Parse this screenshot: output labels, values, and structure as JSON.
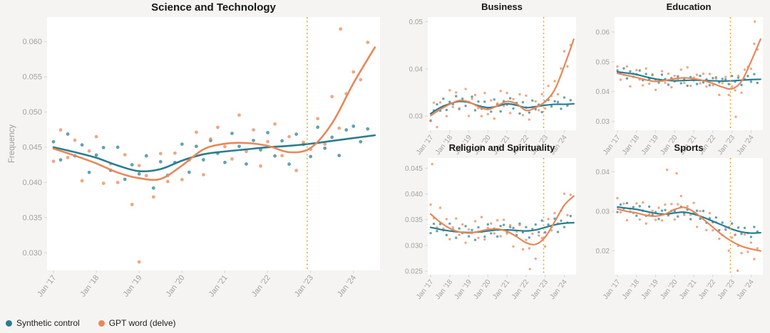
{
  "ylabel": "Frequency",
  "colors": {
    "synthetic": "#2a7d8c",
    "gpt": "#e8875a",
    "event_line": "#eda63c",
    "tick_text": "#a3a3a3",
    "panel_bg": "#ffffff",
    "figure_bg": "#f5f4f2"
  },
  "legend": {
    "items": [
      {
        "key": "synthetic",
        "label": "Synthetic control"
      },
      {
        "key": "gpt",
        "label": "GPT word (delve)"
      }
    ]
  },
  "x_domain": [
    2016.85,
    2024.62
  ],
  "event_x": 2022.92,
  "x_ticks": [
    {
      "year": 2017,
      "label": "Jan '17"
    },
    {
      "year": 2018,
      "label": "Jan '18"
    },
    {
      "year": 2019,
      "label": "Jan '19"
    },
    {
      "year": 2020,
      "label": "Jan '20"
    },
    {
      "year": 2021,
      "label": "Jan '21"
    },
    {
      "year": 2022,
      "label": "Jan '22"
    },
    {
      "year": 2023,
      "label": "Jan '23"
    },
    {
      "year": 2024,
      "label": "Jan '24"
    }
  ],
  "trend_x": [
    2017,
    2017.5,
    2018,
    2018.5,
    2019,
    2019.5,
    2020,
    2020.5,
    2021,
    2021.5,
    2022,
    2022.5,
    2023,
    2023.5,
    2024,
    2024.5
  ],
  "scatter_x": {
    "start": 2017.0,
    "step": 0.16667,
    "count": 45
  },
  "noise": {
    "n1": [
      0.3,
      -0.6,
      0.9,
      -0.2,
      0.5,
      -0.9,
      0.15,
      0.7,
      -0.4,
      1.0,
      -0.65,
      0.25,
      -0.15,
      0.8,
      -1.0,
      0.4,
      -0.5,
      0.05,
      0.9,
      -0.75,
      0.55,
      -0.3,
      0.7,
      -0.05,
      -0.6,
      0.95,
      0.2,
      -0.8,
      0.45,
      -0.1,
      0.8,
      -0.5,
      0.3,
      -1.0,
      0.6,
      0.0,
      -0.7,
      0.85,
      -0.35,
      0.2,
      -0.85,
      0.5,
      0.65,
      -0.25,
      0.4
    ],
    "n2": [
      -0.45,
      0.75,
      -0.15,
      0.55,
      -0.8,
      0.35,
      0.95,
      -0.6,
      0.2,
      -0.35,
      0.7,
      -1.0,
      0.45,
      0.1,
      -0.65,
      0.9,
      -0.25,
      0.6,
      -0.5,
      0.0,
      0.8,
      -0.9,
      0.3,
      0.65,
      -0.1,
      -0.55,
      1.0,
      -0.3,
      0.5,
      -0.75,
      0.15,
      0.85,
      -0.2,
      0.55,
      -0.7,
      0.25,
      -0.05,
      0.75,
      -0.45,
      0.95,
      -0.65,
      0.1,
      0.4,
      -0.3,
      0.6
    ]
  },
  "chart_data": [
    {
      "type": "scatter",
      "key": "science",
      "title": "Science and Technology",
      "ylim": [
        0.0275,
        0.0635
      ],
      "yticks": [
        {
          "value": 0.03,
          "label": "0.030"
        },
        {
          "value": 0.035,
          "label": "0.035"
        },
        {
          "value": 0.04,
          "label": "0.040"
        },
        {
          "value": 0.045,
          "label": "0.045"
        },
        {
          "value": 0.05,
          "label": "0.050"
        },
        {
          "value": 0.055,
          "label": "0.055"
        },
        {
          "value": 0.06,
          "label": "0.060"
        }
      ],
      "series": {
        "synthetic": {
          "trend": [
            0.045,
            0.0443,
            0.0435,
            0.0424,
            0.0416,
            0.0419,
            0.0431,
            0.044,
            0.0444,
            0.0447,
            0.045,
            0.0452,
            0.0455,
            0.0459,
            0.0463,
            0.0467
          ],
          "amp": 0.0026,
          "shift": 0,
          "outliers": []
        },
        "gpt": {
          "trend": [
            0.0448,
            0.0438,
            0.0427,
            0.0414,
            0.0406,
            0.0405,
            0.0424,
            0.0447,
            0.0455,
            0.0456,
            0.0452,
            0.0443,
            0.0449,
            0.0484,
            0.0541,
            0.0592
          ],
          "amp": 0.004,
          "shift": 0,
          "outliers": [
            [
              2019.0,
              0.0287
            ],
            [
              2023.7,
              0.0618
            ]
          ]
        }
      }
    },
    {
      "type": "scatter",
      "key": "business",
      "title": "Business",
      "ylim": [
        0.027,
        0.051
      ],
      "yticks": [
        {
          "value": 0.03,
          "label": "0.03"
        },
        {
          "value": 0.04,
          "label": "0.04"
        },
        {
          "value": 0.05,
          "label": "0.05"
        }
      ],
      "series": {
        "synthetic": {
          "trend": [
            0.0305,
            0.0318,
            0.0326,
            0.0331,
            0.0329,
            0.0322,
            0.0318,
            0.0321,
            0.0326,
            0.0323,
            0.0318,
            0.032,
            0.0323,
            0.0325,
            0.0325,
            0.0326
          ],
          "amp": 0.0016,
          "shift": 5,
          "outliers": []
        },
        "gpt": {
          "trend": [
            0.0301,
            0.0314,
            0.0325,
            0.0333,
            0.033,
            0.032,
            0.0314,
            0.0322,
            0.0331,
            0.0326,
            0.0312,
            0.0318,
            0.0331,
            0.0356,
            0.0406,
            0.0463
          ],
          "amp": 0.0033,
          "shift": 9,
          "outliers": []
        }
      }
    },
    {
      "type": "scatter",
      "key": "education",
      "title": "Education",
      "ylim": [
        0.027,
        0.065
      ],
      "yticks": [
        {
          "value": 0.03,
          "label": "0.03"
        },
        {
          "value": 0.04,
          "label": "0.04"
        },
        {
          "value": 0.05,
          "label": "0.05"
        },
        {
          "value": 0.06,
          "label": "0.06"
        }
      ],
      "series": {
        "synthetic": {
          "trend": [
            0.0466,
            0.0462,
            0.0457,
            0.0449,
            0.0442,
            0.0438,
            0.0436,
            0.0437,
            0.0438,
            0.0437,
            0.0436,
            0.0435,
            0.0436,
            0.0438,
            0.044,
            0.0441
          ],
          "amp": 0.0018,
          "shift": 11,
          "outliers": []
        },
        "gpt": {
          "trend": [
            0.0461,
            0.0454,
            0.0447,
            0.0439,
            0.0434,
            0.0437,
            0.0443,
            0.0446,
            0.0443,
            0.0437,
            0.0427,
            0.0415,
            0.0409,
            0.0434,
            0.0501,
            0.0576
          ],
          "amp": 0.0038,
          "shift": 17,
          "outliers": [
            [
              2023.2,
              0.0315
            ],
            [
              2024.2,
              0.0635
            ]
          ]
        }
      }
    },
    {
      "type": "scatter",
      "key": "religion",
      "title": "Religion and Spirituality",
      "ylim": [
        0.0243,
        0.047
      ],
      "yticks": [
        {
          "value": 0.025,
          "label": "0.025"
        },
        {
          "value": 0.03,
          "label": "0.030"
        },
        {
          "value": 0.035,
          "label": "0.035"
        },
        {
          "value": 0.04,
          "label": "0.040"
        },
        {
          "value": 0.045,
          "label": "0.045"
        }
      ],
      "series": {
        "synthetic": {
          "trend": [
            0.0335,
            0.0331,
            0.0328,
            0.0326,
            0.0325,
            0.0326,
            0.0328,
            0.033,
            0.033,
            0.0329,
            0.0328,
            0.033,
            0.0335,
            0.034,
            0.0343,
            0.0344
          ],
          "amp": 0.0015,
          "shift": 19,
          "outliers": []
        },
        "gpt": {
          "trend": [
            0.0361,
            0.0345,
            0.0333,
            0.0326,
            0.0324,
            0.0327,
            0.0331,
            0.0332,
            0.0327,
            0.0317,
            0.0305,
            0.0302,
            0.0316,
            0.0346,
            0.0378,
            0.0396
          ],
          "amp": 0.0028,
          "shift": 23,
          "outliers": [
            [
              2017.08,
              0.0458
            ],
            [
              2022.2,
              0.0254
            ]
          ]
        }
      }
    },
    {
      "type": "scatter",
      "key": "sports",
      "title": "Sports",
      "ylim": [
        0.014,
        0.0435
      ],
      "yticks": [
        {
          "value": 0.02,
          "label": "0.02"
        },
        {
          "value": 0.03,
          "label": "0.03"
        },
        {
          "value": 0.04,
          "label": "0.04"
        }
      ],
      "series": {
        "synthetic": {
          "trend": [
            0.0311,
            0.0308,
            0.0305,
            0.03,
            0.0295,
            0.0293,
            0.0296,
            0.0298,
            0.0293,
            0.0285,
            0.0275,
            0.0265,
            0.0255,
            0.0248,
            0.0245,
            0.0246
          ],
          "amp": 0.0016,
          "shift": 27,
          "outliers": []
        },
        "gpt": {
          "trend": [
            0.0306,
            0.03,
            0.0296,
            0.029,
            0.0288,
            0.0293,
            0.0305,
            0.031,
            0.0299,
            0.028,
            0.026,
            0.024,
            0.0224,
            0.0212,
            0.0205,
            0.02
          ],
          "amp": 0.0032,
          "shift": 31,
          "outliers": [
            [
              2019.6,
              0.0405
            ],
            [
              2020.1,
              0.0396
            ],
            [
              2023.3,
              0.015
            ]
          ]
        }
      }
    }
  ]
}
